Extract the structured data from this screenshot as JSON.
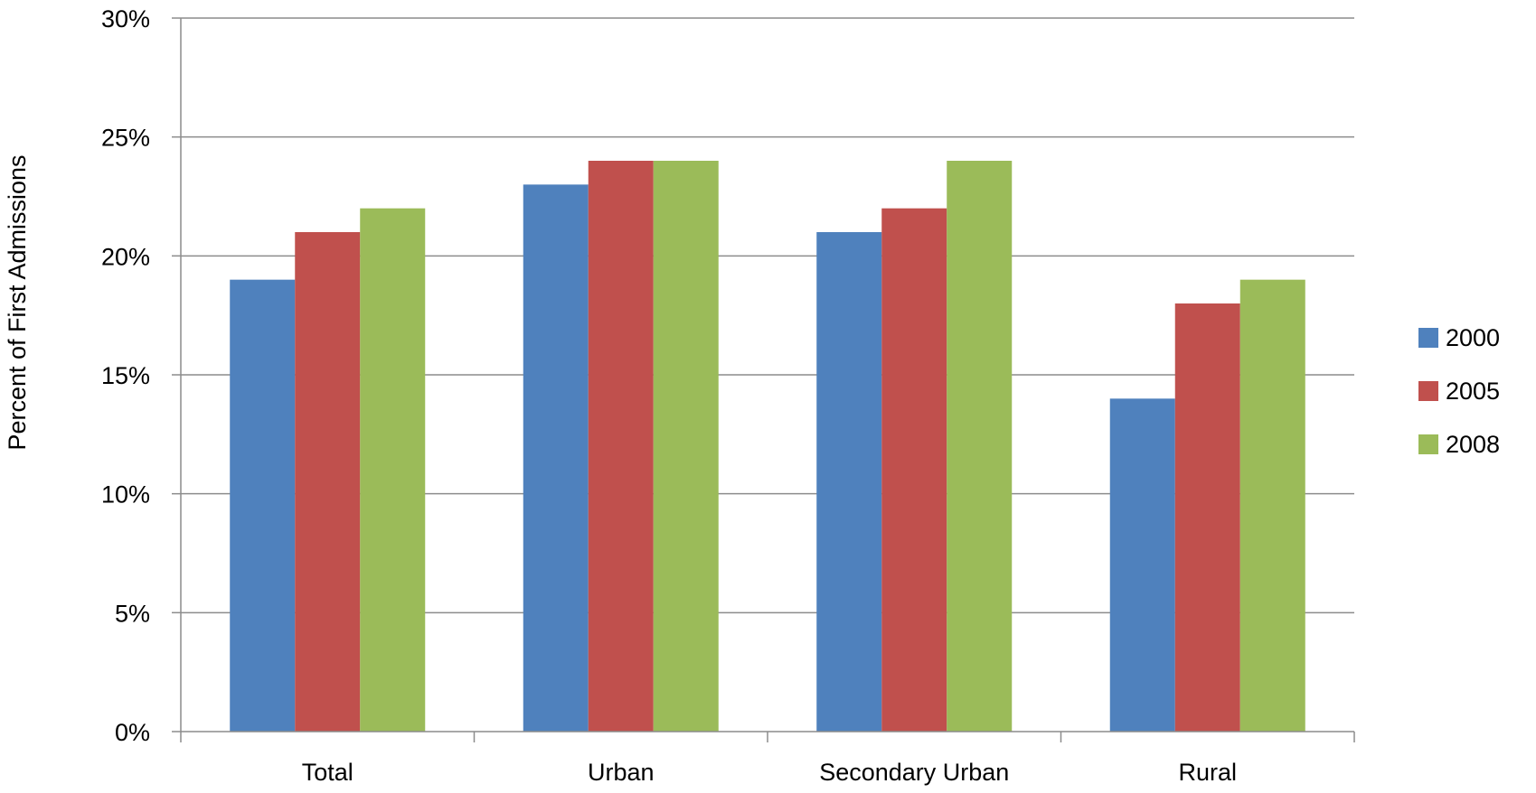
{
  "chart_data": {
    "type": "bar",
    "title": "",
    "xlabel": "",
    "ylabel": "Percent of First Admissions",
    "ylim": [
      0,
      30
    ],
    "yticks": [
      0,
      5,
      10,
      15,
      20,
      25,
      30
    ],
    "ytick_labels": [
      "0%",
      "5%",
      "10%",
      "15%",
      "20%",
      "25%",
      "30%"
    ],
    "categories": [
      "Total",
      "Urban",
      "Secondary Urban",
      "Rural"
    ],
    "series": [
      {
        "name": "2000",
        "color": "#4F81BD",
        "values": [
          19,
          23,
          21,
          14
        ]
      },
      {
        "name": "2005",
        "color": "#C0504D",
        "values": [
          21,
          24,
          22,
          18
        ]
      },
      {
        "name": "2008",
        "color": "#9BBB59",
        "values": [
          22,
          24,
          24,
          19
        ]
      }
    ],
    "grid": true,
    "legend_position": "right"
  }
}
